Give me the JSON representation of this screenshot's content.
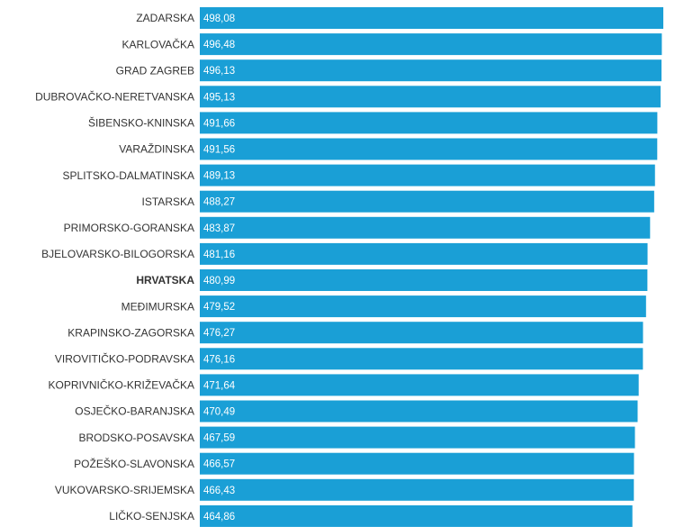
{
  "chart_data": {
    "type": "bar",
    "orientation": "horizontal",
    "categories": [
      "ZADARSKA",
      "KARLOVAČKA",
      "GRAD ZAGREB",
      "DUBROVAČKO-NERETVANSKA",
      "ŠIBENSKO-KNINSKA",
      "VARAŽDINSKA",
      "SPLITSKO-DALMATINSKA",
      "ISTARSKA",
      "PRIMORSKO-GORANSKA",
      "BJELOVARSKO-BILOGORSKA",
      "HRVATSKA",
      "MEĐIMURSKA",
      "KRAPINSKO-ZAGORSKA",
      "VIROVITIČKO-PODRAVSKA",
      "KOPRIVNIČKO-KRIŽEVAČKA",
      "OSJEČKO-BARANJSKA",
      "BRODSKO-POSAVSKA",
      "POŽEŠKO-SLAVONSKA",
      "VUKOVARSKO-SRIJEMSKA",
      "LIČKO-SENJSKA"
    ],
    "values": [
      498.08,
      496.48,
      496.13,
      495.13,
      491.66,
      491.56,
      489.13,
      488.27,
      483.87,
      481.16,
      480.99,
      479.52,
      476.27,
      476.16,
      471.64,
      470.49,
      467.59,
      466.57,
      466.43,
      464.86
    ],
    "value_labels": [
      "498,08",
      "496,48",
      "496,13",
      "495,13",
      "491,66",
      "491,56",
      "489,13",
      "488,27",
      "483,87",
      "481,16",
      "480,99",
      "479,52",
      "476,27",
      "476,16",
      "471,64",
      "470,49",
      "467,59",
      "466,57",
      "466,43",
      "464,86"
    ],
    "color": "#1a9fd6",
    "xlim": [
      0,
      500
    ],
    "highlight_index": 10
  }
}
